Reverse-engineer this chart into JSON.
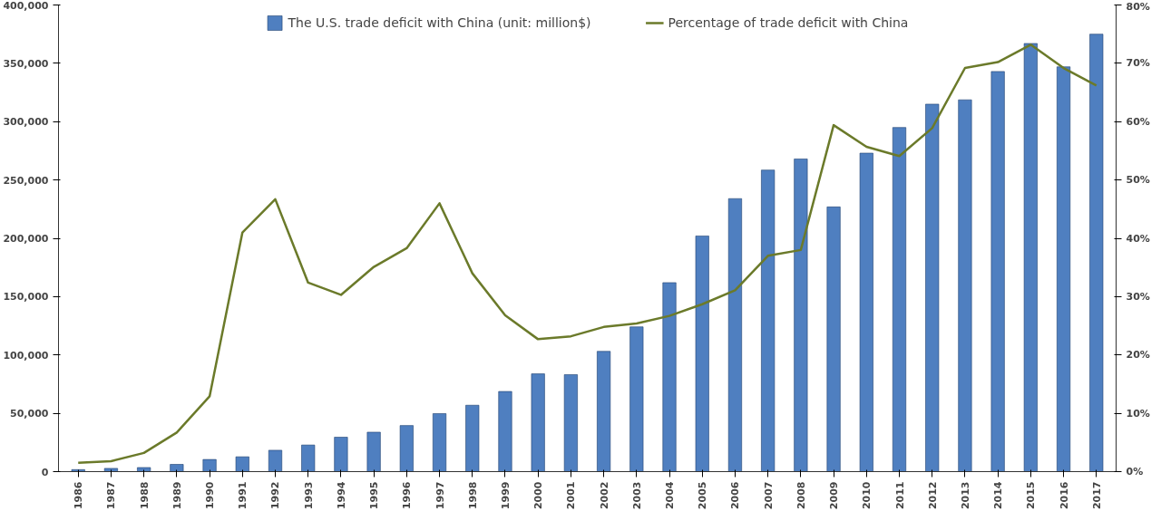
{
  "chart_data": {
    "type": "bar",
    "categories": [
      "1986",
      "1987",
      "1988",
      "1989",
      "1990",
      "1991",
      "1992",
      "1993",
      "1994",
      "1995",
      "1996",
      "1997",
      "1998",
      "1999",
      "2000",
      "2001",
      "2002",
      "2003",
      "2004",
      "2005",
      "2006",
      "2007",
      "2008",
      "2009",
      "2010",
      "2011",
      "2012",
      "2013",
      "2014",
      "2015",
      "2016",
      "2017"
    ],
    "series": [
      {
        "name": "The U.S. trade deficit with China (unit: million$)",
        "color": "#4f7fc0",
        "values": [
          1700,
          2800,
          3500,
          6200,
          10400,
          12700,
          18300,
          22800,
          29500,
          33800,
          39500,
          49700,
          56900,
          68700,
          83800,
          83100,
          103100,
          124100,
          162000,
          202000,
          234000,
          258500,
          268000,
          226900,
          273000,
          295000,
          315000,
          318700,
          343000,
          367000,
          347000,
          375000
        ]
      },
      {
        "name": "Percentage of trade deficit with China",
        "type": "line",
        "axis": "y2",
        "color": "#6b7a2a",
        "values": [
          1.5,
          1.8,
          3.2,
          6.7,
          12.9,
          41,
          46.7,
          32.4,
          30.3,
          35.1,
          38.3,
          46,
          34,
          26.8,
          22.7,
          23.2,
          24.8,
          25.4,
          26.7,
          28.7,
          31.1,
          37,
          38,
          59.4,
          55.7,
          54.1,
          58.9,
          69.2,
          70.2,
          73.2,
          69.2,
          66.2
        ]
      }
    ],
    "ylim": [
      0,
      400000
    ],
    "yticks": [
      {
        "value": 0,
        "label": "0"
      },
      {
        "value": 50000,
        "label": "50,000"
      },
      {
        "value": 100000,
        "label": "100,000"
      },
      {
        "value": 150000,
        "label": "150,000"
      },
      {
        "value": 200000,
        "label": "200,000"
      },
      {
        "value": 250000,
        "label": "250,000"
      },
      {
        "value": 300000,
        "label": "300,000"
      },
      {
        "value": 350000,
        "label": "350,000"
      },
      {
        "value": 400000,
        "label": "400,000"
      }
    ],
    "y2lim": [
      0,
      80
    ],
    "y2ticks": [
      {
        "value": 0,
        "label": "0%"
      },
      {
        "value": 10,
        "label": "10%"
      },
      {
        "value": 20,
        "label": "20%"
      },
      {
        "value": 30,
        "label": "30%"
      },
      {
        "value": 40,
        "label": "40%"
      },
      {
        "value": 50,
        "label": "50%"
      },
      {
        "value": 60,
        "label": "60%"
      },
      {
        "value": 70,
        "label": "70%"
      },
      {
        "value": 80,
        "label": "80%"
      }
    ],
    "legend": "top",
    "grid": false,
    "marker": "none",
    "line_style": "solid"
  }
}
